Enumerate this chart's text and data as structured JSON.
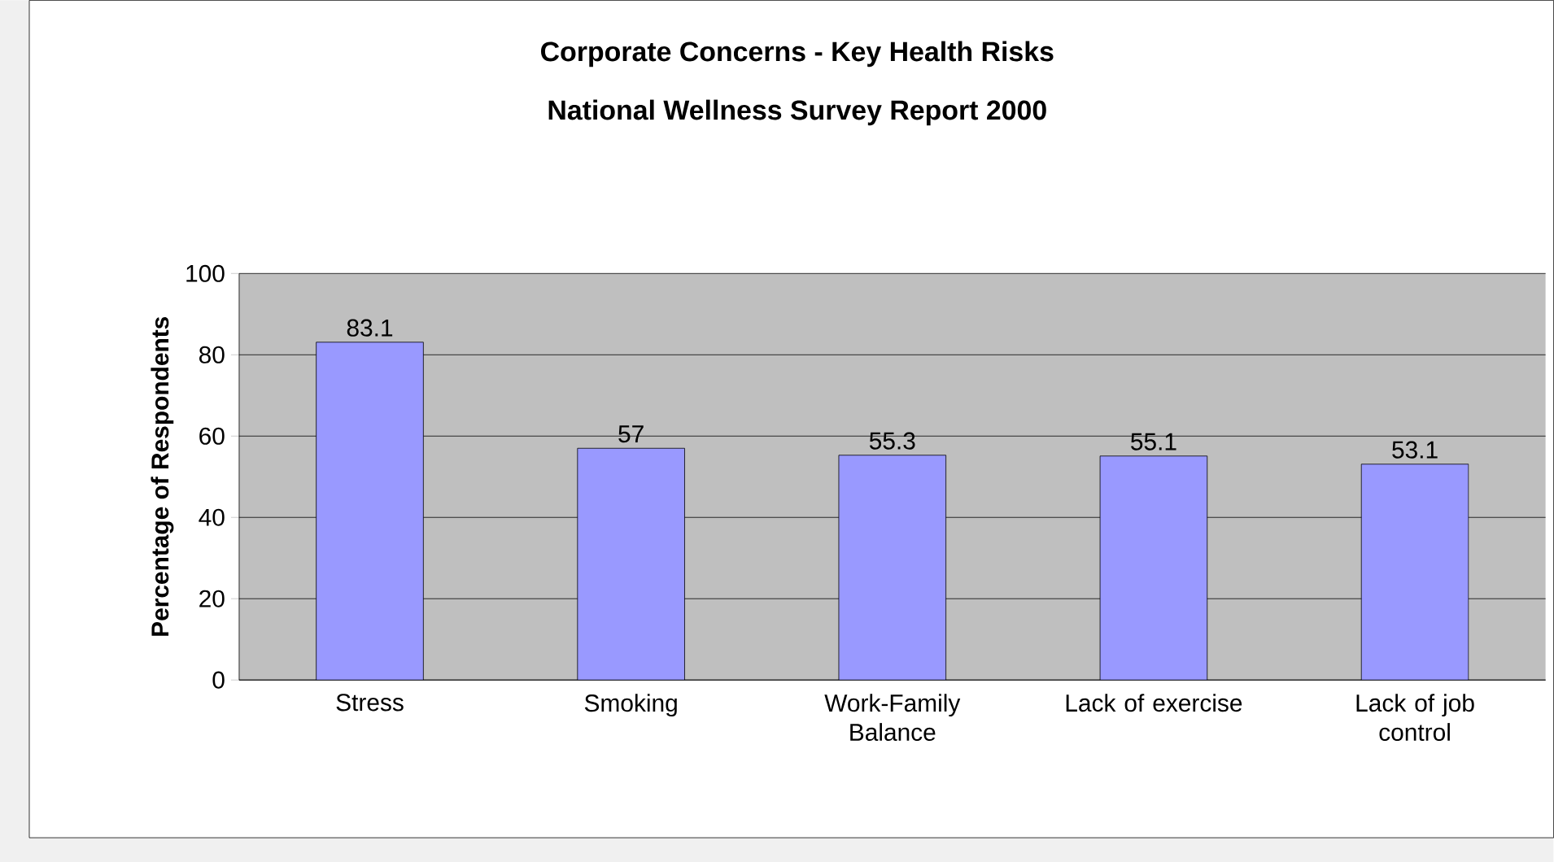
{
  "chart_data": {
    "type": "bar",
    "title": "Corporate Concerns - Key Health Risks",
    "subtitle": "National Wellness Survey Report 2000",
    "ylabel": "Percentage of Respondents",
    "categories": [
      "Stress",
      "Smoking",
      "Work-Family Balance",
      "Lack of exercise",
      "Lack of job control"
    ],
    "values": [
      83.1,
      57,
      55.3,
      55.1,
      53.1
    ],
    "color": "#9999ff",
    "ylim": [
      0,
      100
    ],
    "yticks": [
      0,
      20,
      40,
      60,
      80,
      100
    ],
    "grid": "y",
    "data_labels": true
  }
}
